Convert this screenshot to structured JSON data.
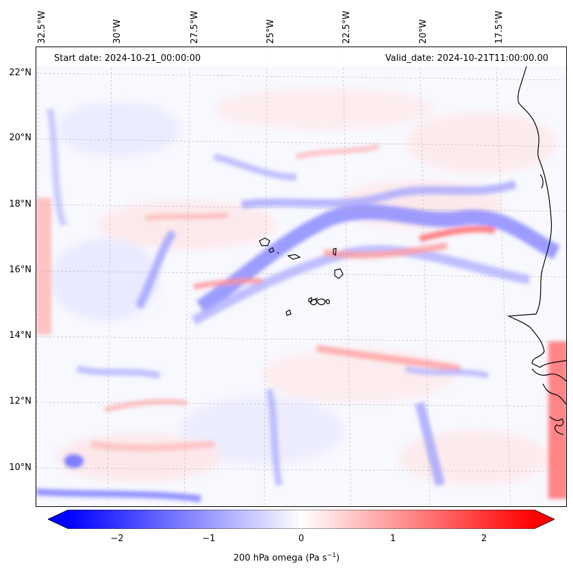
{
  "map": {
    "start_date": "Start date: 2024-10-21_00:00:00",
    "valid_date": "Valid_date: 2024-10-21T11:00:00.00",
    "longitude_labels": [
      "32.5°W",
      "30°W",
      "27.5°W",
      "25°W",
      "22.5°W",
      "20°W",
      "17.5°W"
    ],
    "latitude_labels": [
      "22°N",
      "20°N",
      "18°N",
      "16°N",
      "14°N",
      "12°N",
      "10°N"
    ],
    "field": "200 hPa omega",
    "field_description": "shaded contour field, blue = negative (ascent), red = positive (descent)"
  },
  "colorbar": {
    "ticks": [
      "−2",
      "−1",
      "0",
      "1",
      "2"
    ],
    "label_main": "200 hPa omega (Pa s",
    "label_exp": "−1",
    "label_close": ")",
    "vmin": -2.6,
    "vmax": 2.6,
    "colors": {
      "low": "#0000ff",
      "mid": "#ffffff",
      "high": "#ff0000"
    }
  },
  "chart_data": {
    "type": "heatmap",
    "title": "",
    "xlabel": "",
    "ylabel": "",
    "xlim": [
      -33,
      -15
    ],
    "ylim": [
      9,
      23
    ],
    "x_ticks": [
      "32.5°W",
      "30°W",
      "27.5°W",
      "25°W",
      "22.5°W",
      "20°W",
      "17.5°W"
    ],
    "y_ticks": [
      "22°N",
      "20°N",
      "18°N",
      "16°N",
      "14°N",
      "12°N",
      "10°N"
    ],
    "colorbar_range": [
      -2.6,
      2.6
    ],
    "colorbar_ticks": [
      -2,
      -1,
      0,
      1,
      2
    ],
    "grid": true
  }
}
